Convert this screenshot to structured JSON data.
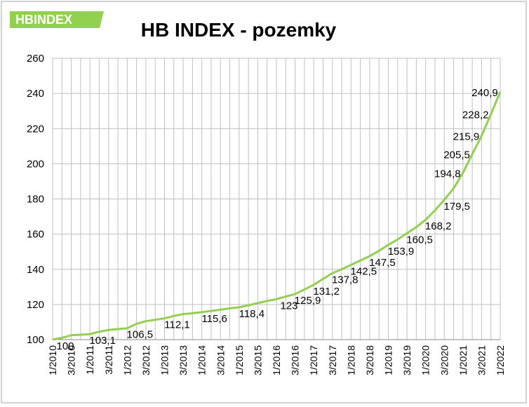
{
  "logo": "HBINDEX",
  "chart_data": {
    "type": "line",
    "title": "HB INDEX - pozemky",
    "categories": [
      "1/2010",
      null,
      "3/2010",
      null,
      "1/2011",
      null,
      "3/2011",
      null,
      "1/2012",
      null,
      "3/2012",
      null,
      "1/2013",
      null,
      "3/2013",
      null,
      "1/2014",
      null,
      "3/2014",
      null,
      "1/2015",
      null,
      "3/2015",
      null,
      "1/2016",
      null,
      "3/2016",
      null,
      "1/2017",
      null,
      "3/2017",
      null,
      "1/2018",
      null,
      "3/2018",
      null,
      "1/2019",
      null,
      "3/2019",
      null,
      "1/2020",
      null,
      "3/2020",
      null,
      "1/2021",
      null,
      "3/2021",
      null,
      "1/2022"
    ],
    "series": [
      {
        "name": "HB INDEX",
        "color": "#92d050",
        "values": [
          100,
          101,
          102.5,
          102.8,
          103.1,
          104.5,
          105.5,
          106,
          106.5,
          109,
          110.5,
          111.3,
          112.1,
          113.5,
          114.5,
          115,
          115.6,
          116.3,
          117,
          117.8,
          118.4,
          119.5,
          120.8,
          122,
          123,
          124.5,
          125.9,
          128.5,
          131.2,
          134.5,
          137.8,
          140,
          142.5,
          145,
          147.5,
          150.5,
          153.9,
          157,
          160.5,
          164,
          168.2,
          173.5,
          179.5,
          186,
          194.8,
          205.5,
          215.9,
          228.2,
          240.9
        ],
        "value_labels": [
          "100",
          null,
          null,
          null,
          "103,1",
          null,
          null,
          null,
          "106,5",
          null,
          null,
          null,
          "112,1",
          null,
          null,
          null,
          "115,6",
          null,
          null,
          null,
          "118,4",
          null,
          null,
          null,
          "123",
          null,
          "125,9",
          null,
          "131,2",
          null,
          "137,8",
          null,
          "142,5",
          null,
          "147,5",
          null,
          "153,9",
          null,
          "160,5",
          null,
          "168,2",
          null,
          "179,5",
          null,
          "194,8",
          "205,5",
          "215,9",
          "228,2",
          "240,9"
        ]
      }
    ],
    "ylim": [
      100,
      260
    ],
    "yticks": [
      100,
      120,
      140,
      160,
      180,
      200,
      220,
      240,
      260
    ],
    "grid": true
  }
}
